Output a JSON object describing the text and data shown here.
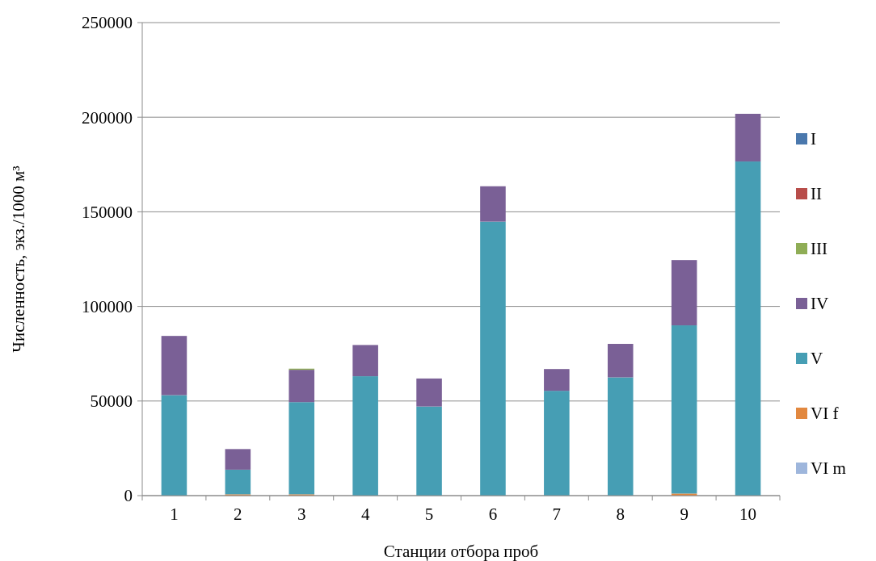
{
  "chart_data": {
    "type": "bar",
    "stacked": true,
    "xlabel": "Станции отбора проб",
    "ylabel": "Численность, экз./1000 м³",
    "categories": [
      "1",
      "2",
      "3",
      "4",
      "5",
      "6",
      "7",
      "8",
      "9",
      "10"
    ],
    "ylim": [
      0,
      250000
    ],
    "yticks": [
      0,
      50000,
      100000,
      150000,
      200000,
      250000
    ],
    "grid": "y",
    "legend": "right",
    "series": [
      {
        "name": "VI m",
        "color": "#9eb6dc",
        "values": [
          0,
          0,
          0,
          0,
          0,
          0,
          0,
          0,
          0,
          0
        ]
      },
      {
        "name": "VI f",
        "color": "#e2883f",
        "values": [
          0,
          700,
          700,
          0,
          0,
          0,
          0,
          0,
          1100,
          0
        ]
      },
      {
        "name": "V",
        "color": "#469eb4",
        "values": [
          53100,
          13000,
          48700,
          63100,
          47100,
          144800,
          55400,
          62500,
          88900,
          176600
        ]
      },
      {
        "name": "IV",
        "color": "#7a6096",
        "values": [
          31300,
          10900,
          17100,
          16500,
          14800,
          18700,
          11500,
          17700,
          34500,
          25200
        ]
      },
      {
        "name": "III",
        "color": "#8fad56",
        "values": [
          0,
          0,
          600,
          0,
          0,
          0,
          0,
          0,
          0,
          0
        ]
      },
      {
        "name": "II",
        "color": "#b84d4a",
        "values": [
          0,
          0,
          0,
          0,
          0,
          0,
          0,
          0,
          0,
          0
        ]
      },
      {
        "name": "I",
        "color": "#4a78ad",
        "values": [
          0,
          0,
          0,
          0,
          0,
          0,
          0,
          0,
          0,
          0
        ]
      }
    ]
  }
}
